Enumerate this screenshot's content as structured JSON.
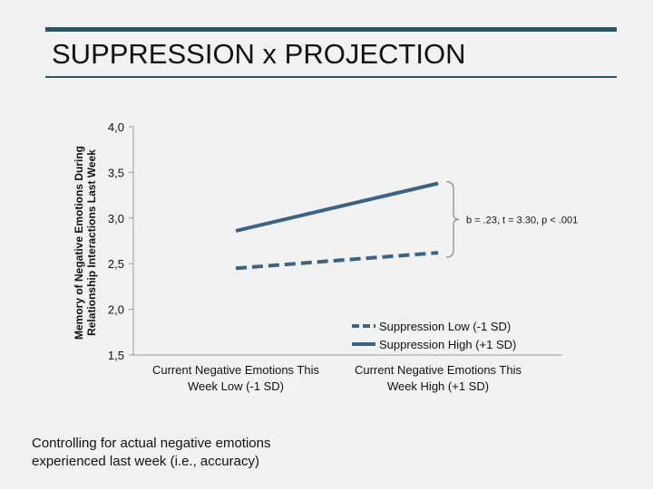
{
  "slide": {
    "title": "SUPPRESSION x PROJECTION",
    "footnote": "Controlling for actual negative emotions experienced last week (i.e., accuracy)",
    "accent_color": "#2e5469"
  },
  "chart_data": {
    "type": "line",
    "categories": [
      "Current Negative Emotions This Week Low (-1 SD)",
      "Current Negative Emotions This Week High (+1 SD)"
    ],
    "ylabel": "Memory of Negative Emotions During Relationship Interactions Last Week",
    "ylim": [
      1.5,
      4.0
    ],
    "yticks": [
      "1,5",
      "2,0",
      "2,5",
      "3,0",
      "3,5",
      "4,0"
    ],
    "ytick_values": [
      1.5,
      2.0,
      2.5,
      3.0,
      3.5,
      4.0
    ],
    "grid": false,
    "legend_position": "bottom-right",
    "series": [
      {
        "name": "Suppression Low (-1 SD)",
        "values": [
          2.45,
          2.62
        ],
        "style": "dashed",
        "color": "#3a6485"
      },
      {
        "name": "Suppression High (+1 SD)",
        "values": [
          2.86,
          3.38
        ],
        "style": "solid",
        "color": "#3a6485"
      }
    ],
    "annotation": "b = .23, t = 3.30, p < .001"
  }
}
